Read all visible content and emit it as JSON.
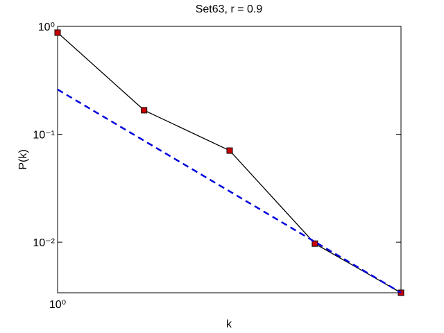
{
  "chart_data": {
    "type": "line",
    "title": "Set63, r = 0.9",
    "xlabel": "k",
    "ylabel": "P(k)",
    "xscale": "log",
    "yscale": "log",
    "xlim": [
      1,
      5
    ],
    "ylim": [
      0.0034,
      1
    ],
    "xticks": [
      {
        "value": 1,
        "label": "10⁰"
      }
    ],
    "yticks": [
      {
        "value": 0.01,
        "label": "10⁻²"
      },
      {
        "value": 0.1,
        "label": "10⁻¹"
      },
      {
        "value": 1,
        "label": "10⁰"
      }
    ],
    "series": [
      {
        "x": [
          1,
          1.5,
          2.24,
          3.34,
          5
        ],
        "values": [
          0.875,
          0.167,
          0.0706,
          0.0097,
          0.0034
        ],
        "color": "#000000",
        "marker": "square",
        "marker_color": "#cc0000",
        "dash": "solid"
      },
      {
        "x": [
          1,
          5
        ],
        "values": [
          0.26,
          0.0034
        ],
        "color": "#0000dd",
        "dash": "dashed"
      }
    ]
  }
}
